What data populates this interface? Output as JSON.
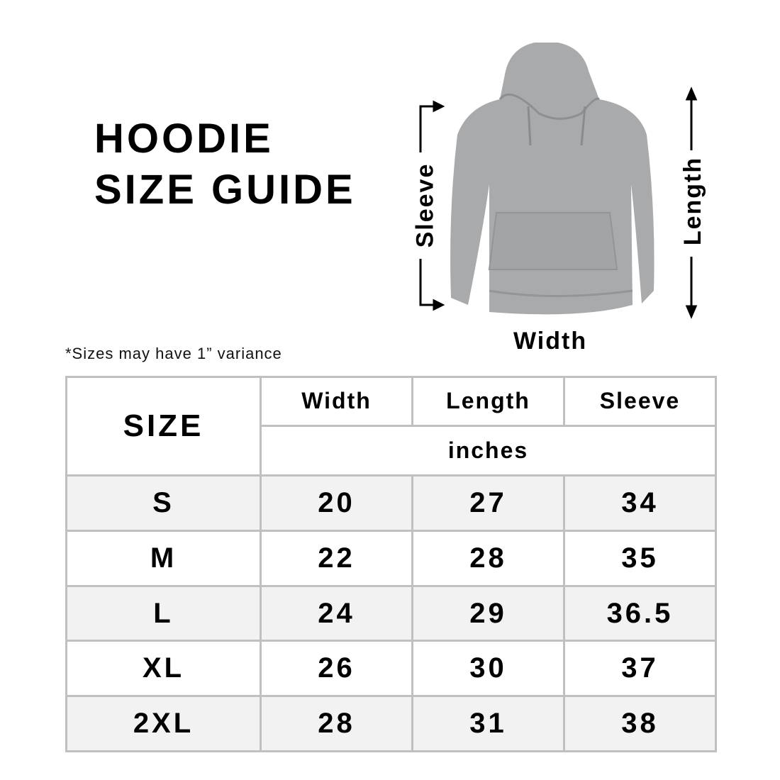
{
  "title_lines": [
    "HOODIE",
    "SIZE GUIDE"
  ],
  "note": "*Sizes may have 1” variance",
  "diagram": {
    "sleeve_label": "Sleeve",
    "length_label": "Length",
    "width_label": "Width",
    "garment_color": "#a9aaac"
  },
  "table": {
    "size_header": "SIZE",
    "columns": [
      "Width",
      "Length",
      "Sleeve"
    ],
    "unit": "inches",
    "rows": [
      {
        "size": "S",
        "width": "20",
        "length": "27",
        "sleeve": "34"
      },
      {
        "size": "M",
        "width": "22",
        "length": "28",
        "sleeve": "35"
      },
      {
        "size": "L",
        "width": "24",
        "length": "29",
        "sleeve": "36.5"
      },
      {
        "size": "XL",
        "width": "26",
        "length": "30",
        "sleeve": "37"
      },
      {
        "size": "2XL",
        "width": "28",
        "length": "31",
        "sleeve": "38"
      }
    ],
    "shaded_row_color": "#f2f2f2",
    "border_color": "#c0c0c0"
  }
}
